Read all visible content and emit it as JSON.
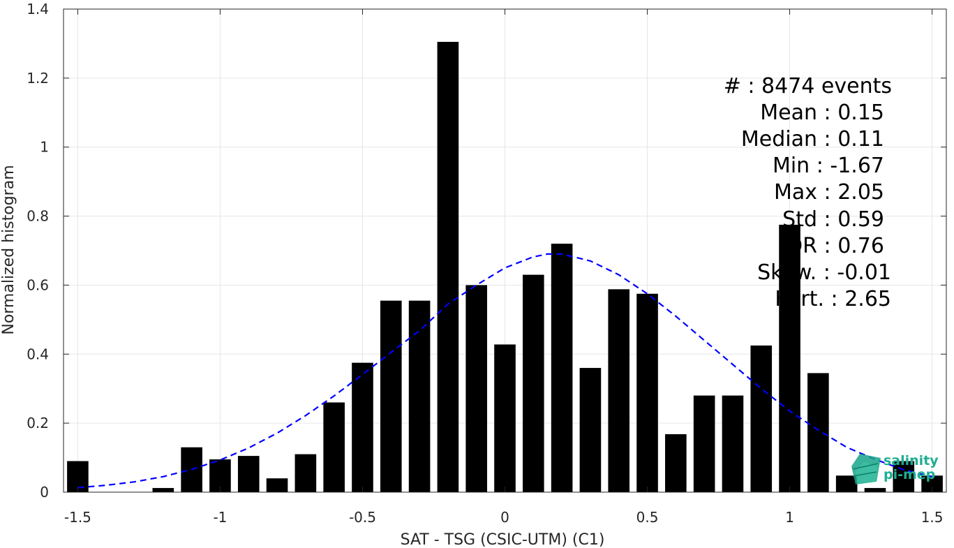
{
  "chart_data": {
    "type": "bar",
    "title": "",
    "xlabel": "SAT - TSG (CSIC-UTM) (C1)",
    "ylabel": "Normalized histogram",
    "xlim": [
      -1.55,
      1.55
    ],
    "ylim": [
      0,
      1.4
    ],
    "grid": true,
    "legend": "none",
    "xticks": [
      -1.5,
      -1,
      -0.5,
      0,
      0.5,
      1,
      1.5
    ],
    "xtick_labels": [
      "-1.5",
      "-1",
      "-0.5",
      "0",
      "0.5",
      "1",
      "1.5"
    ],
    "yticks": [
      0,
      0.2,
      0.4,
      0.6,
      0.8,
      1,
      1.2,
      1.4
    ],
    "ytick_labels": [
      "0",
      "0.2",
      "0.4",
      "0.6",
      "0.8",
      "1",
      "1.2",
      "1.4"
    ],
    "bar_width": 0.075,
    "bar_color": "#000000",
    "bars": {
      "centers": [
        -1.5,
        -1.4,
        -1.3,
        -1.2,
        -1.1,
        -1.0,
        -0.9,
        -0.8,
        -0.7,
        -0.6,
        -0.5,
        -0.4,
        -0.3,
        -0.2,
        -0.1,
        0.0,
        0.1,
        0.2,
        0.3,
        0.4,
        0.5,
        0.6,
        0.7,
        0.8,
        0.9,
        1.0,
        1.1,
        1.2,
        1.3,
        1.4,
        1.5
      ],
      "values": [
        0.09,
        0,
        0,
        0.012,
        0.13,
        0.095,
        0.105,
        0.04,
        0.11,
        0.26,
        0.375,
        0.555,
        0.555,
        1.305,
        0.6,
        0.428,
        0.63,
        0.72,
        0.36,
        0.588,
        0.575,
        0.168,
        0.28,
        0.28,
        0.425,
        0.775,
        0.345,
        0.048,
        0.012,
        0.09,
        0.048
      ]
    },
    "fit_curve": {
      "style": "dashed",
      "color": "#0000ff",
      "x": [
        -1.5,
        -1.4,
        -1.3,
        -1.2,
        -1.1,
        -1.0,
        -0.9,
        -0.8,
        -0.7,
        -0.6,
        -0.5,
        -0.4,
        -0.3,
        -0.2,
        -0.1,
        0.0,
        0.1,
        0.15,
        0.2,
        0.3,
        0.4,
        0.5,
        0.6,
        0.7,
        0.8,
        0.9,
        1.0,
        1.1,
        1.2,
        1.3,
        1.4,
        1.5
      ],
      "y": [
        0.013,
        0.02,
        0.03,
        0.045,
        0.066,
        0.093,
        0.128,
        0.171,
        0.222,
        0.279,
        0.341,
        0.405,
        0.468,
        0.545,
        0.6,
        0.65,
        0.682,
        0.69,
        0.69,
        0.67,
        0.63,
        0.575,
        0.51,
        0.44,
        0.37,
        0.3,
        0.235,
        0.18,
        0.13,
        0.095,
        0.065,
        0.045
      ]
    }
  },
  "stats": [
    "#  : 8474 events",
    "Mean : 0.15",
    "Median : 0.11",
    "Min : -1.67",
    "Max : 2.05",
    "Std : 0.59",
    "IQR : 0.76",
    "Skew. : -0.01",
    "Kurt. : 2.65"
  ],
  "logo": {
    "line1": "salinity",
    "line2": "pi-mep",
    "color": "#1fae92"
  }
}
